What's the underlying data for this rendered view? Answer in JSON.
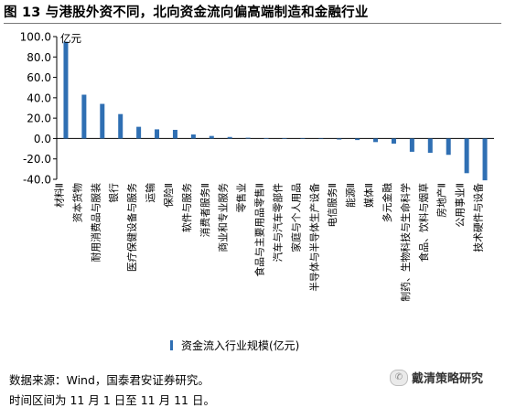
{
  "title": "图 13 与港股外资不同，北向资金流向偏高端制造和金融行业",
  "chart_data": {
    "type": "bar",
    "unit_label": "亿元",
    "ylim": [
      -40,
      100
    ],
    "yticks": [
      "100.0",
      "80.0",
      "60.0",
      "40.0",
      "20.0",
      "0.0",
      "-20.0",
      "-40.0"
    ],
    "ytick_values": [
      100,
      80,
      60,
      40,
      20,
      0,
      -20,
      -40
    ],
    "bar_color": "#2f6fb3",
    "legend_position": "bottom",
    "categories": [
      "材料Ⅱ",
      "资本货物",
      "耐用消费品与服装",
      "银行",
      "医疗保健设备与服务",
      "运输",
      "保险Ⅱ",
      "软件与服务",
      "消费者服务Ⅱ",
      "商业和专业服务",
      "零售业",
      "食品与主要用品零售Ⅱ",
      "汽车与汽车零部件",
      "家庭与个人用品",
      "半导体与半导体生产设备",
      "电信服务Ⅱ",
      "能源Ⅱ",
      "媒体Ⅱ",
      "多元金融",
      "制药、生物科技与生命科学",
      "食品、饮料与烟草",
      "房地产Ⅱ",
      "公用事业Ⅱ",
      "技术硬件与设备"
    ],
    "series": [
      {
        "name": "资金流入行业规模(亿元)",
        "values": [
          95,
          43,
          34,
          24,
          11.5,
          9,
          8.5,
          4,
          2.5,
          1.5,
          0.8,
          0.3,
          0.2,
          0.1,
          0,
          -1,
          -1.5,
          -3.5,
          -5,
          -13,
          -14,
          -16,
          -34,
          -41
        ]
      }
    ]
  },
  "source": "数据来源：Wind，国泰君安证券研究。",
  "note": "时间区间为 11 月 1 日至 11 月 11 日。",
  "watermark": {
    "icon": "wechat-icon",
    "text": "戴清策略研究"
  }
}
